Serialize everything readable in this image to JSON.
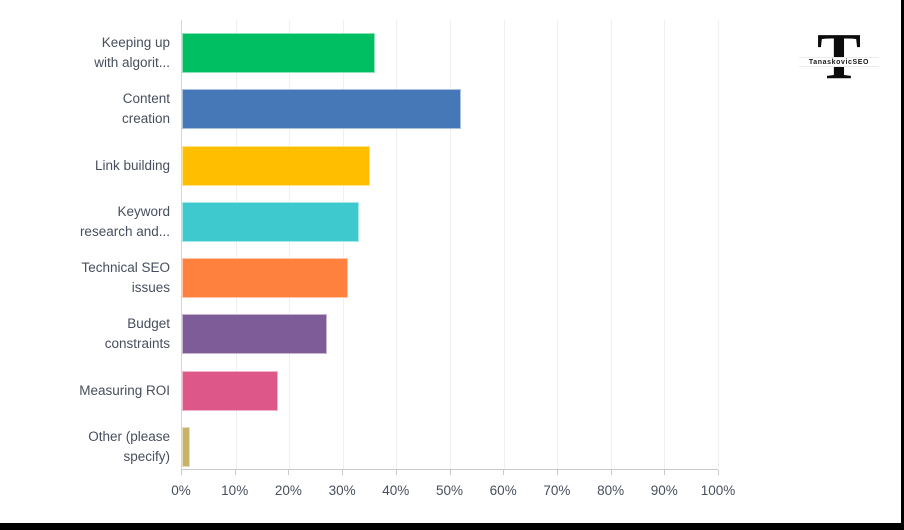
{
  "logo": {
    "letter": "T",
    "name": "TanaskovicSEO"
  },
  "colors": {
    "grid": "#efefef",
    "axis": "#c9c9c9",
    "text": "#474e5d",
    "frame_edge": "#000000"
  },
  "chart_data": {
    "type": "bar",
    "orientation": "horizontal",
    "title": "",
    "xlabel": "",
    "ylabel": "",
    "grid": true,
    "legend": "none",
    "xlim": [
      0,
      100
    ],
    "x_ticks": [
      "0%",
      "10%",
      "20%",
      "30%",
      "40%",
      "50%",
      "60%",
      "70%",
      "80%",
      "90%",
      "100%"
    ],
    "categories": [
      "Keeping up with algorit...",
      "Content creation",
      "Link building",
      "Keyword research and...",
      "Technical SEO issues",
      "Budget constraints",
      "Measuring ROI",
      "Other (please specify)"
    ],
    "category_lines": [
      [
        "Keeping up",
        "with algorit..."
      ],
      [
        "Content",
        "creation"
      ],
      [
        "Link building"
      ],
      [
        "Keyword",
        "research and..."
      ],
      [
        "Technical SEO",
        "issues"
      ],
      [
        "Budget",
        "constraints"
      ],
      [
        "Measuring ROI"
      ],
      [
        "Other (please",
        "specify)"
      ]
    ],
    "values": [
      36,
      52,
      35,
      33,
      31,
      27,
      18,
      1.5
    ],
    "bar_colors": [
      "#00bf63",
      "#4678b8",
      "#ffbe00",
      "#3dc9cd",
      "#ff813d",
      "#7e5c98",
      "#dd5788",
      "#c9b269"
    ]
  }
}
